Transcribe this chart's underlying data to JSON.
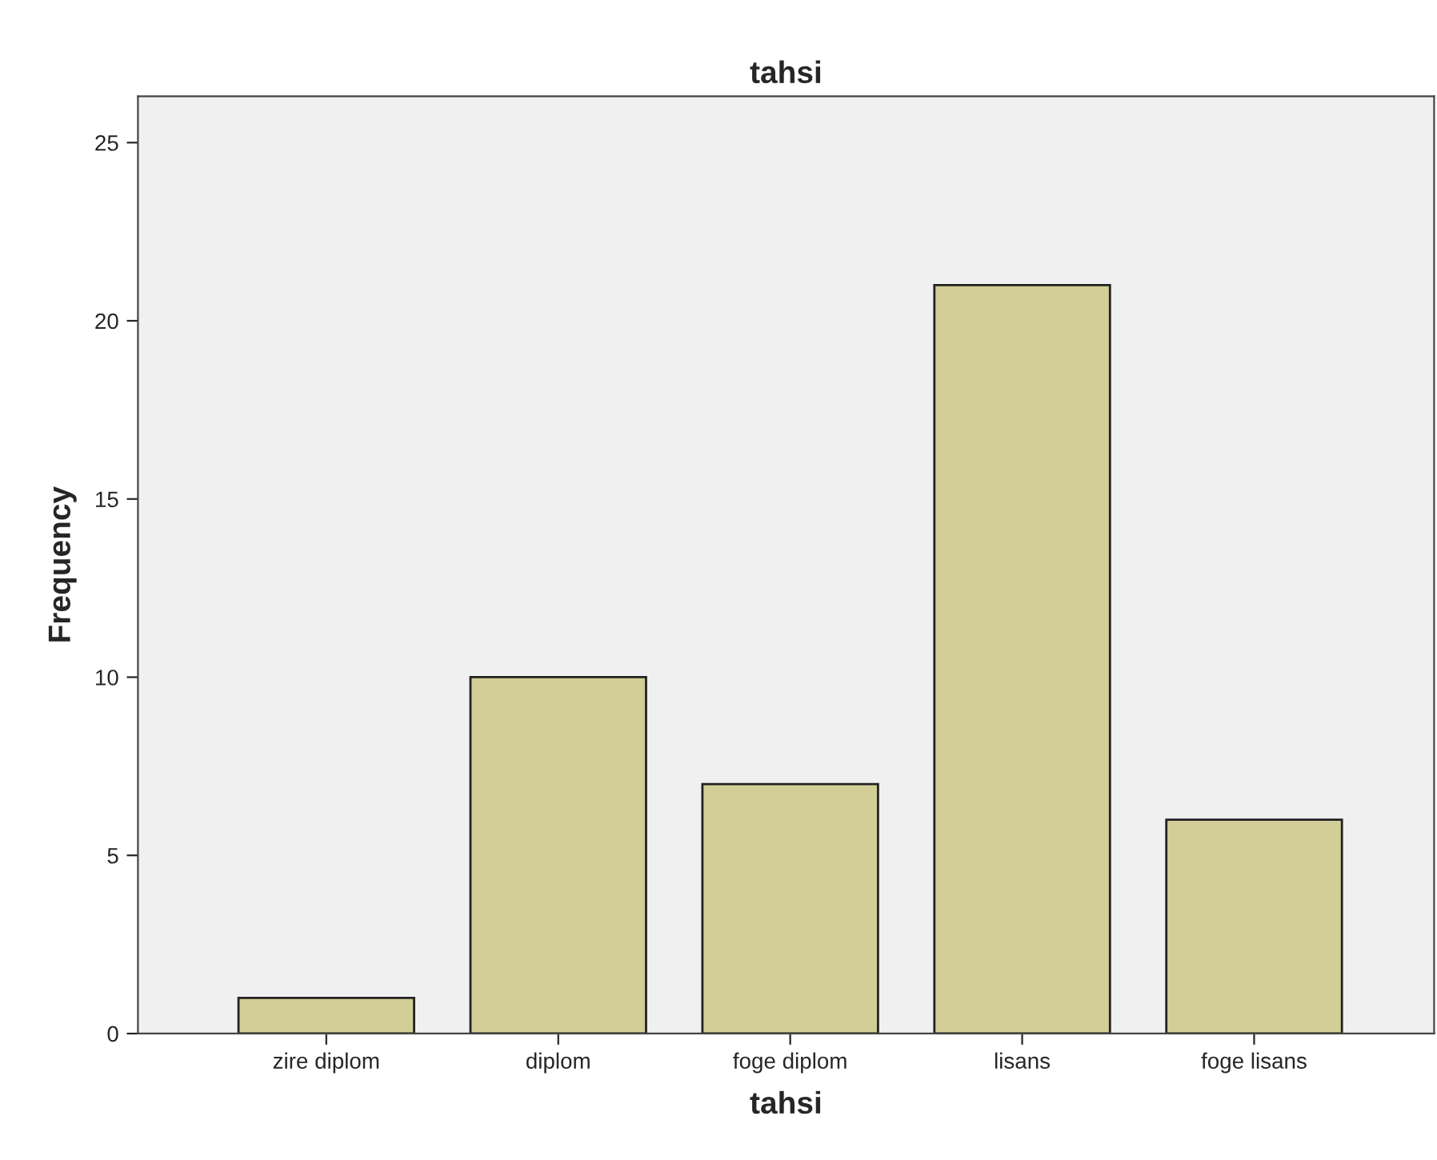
{
  "chart_data": {
    "type": "bar",
    "title": "tahsi",
    "xlabel": "tahsi",
    "ylabel": "Frequency",
    "categories": [
      "zire diplom",
      "diplom",
      "foge diplom",
      "lisans",
      "foge lisans"
    ],
    "values": [
      1,
      10,
      7,
      21,
      6
    ],
    "color": "#d3ce97",
    "ylim": [
      0,
      26.3
    ],
    "yticks": [
      0,
      5,
      10,
      15,
      20,
      25
    ],
    "grid": false,
    "legend": false
  }
}
